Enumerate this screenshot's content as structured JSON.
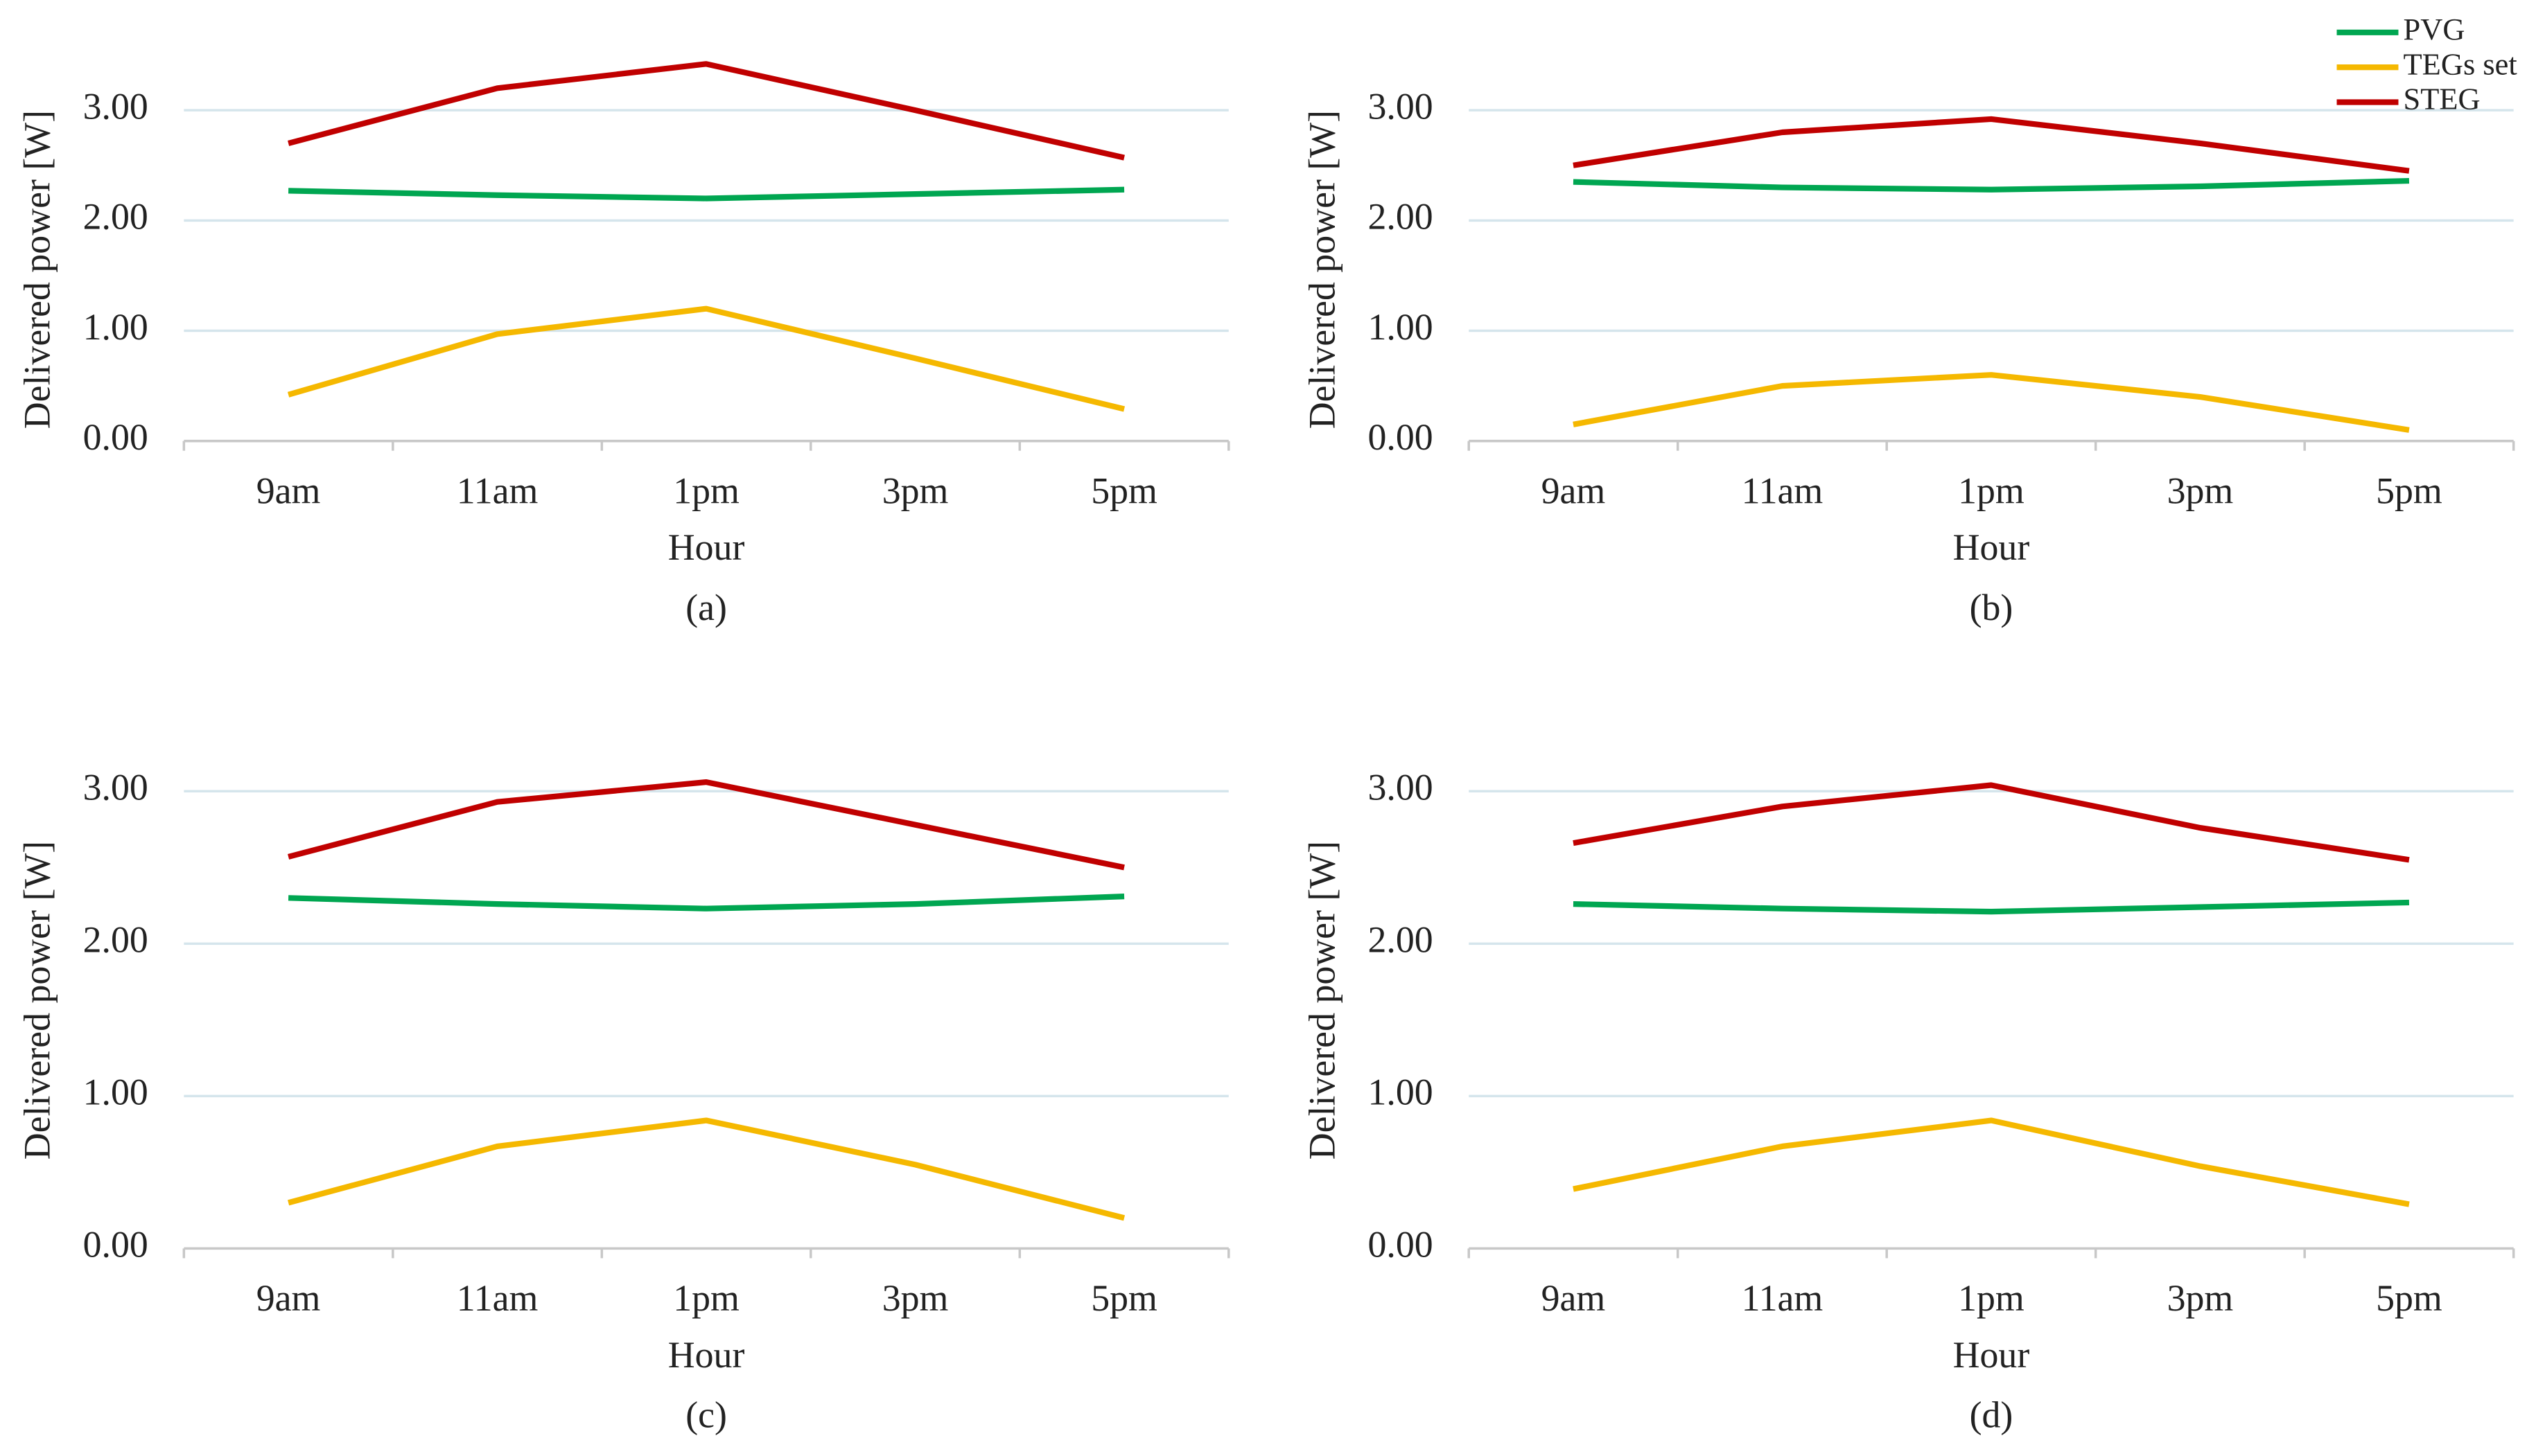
{
  "chart_data": [
    {
      "type": "line",
      "title": "(a)",
      "x_label": "Hour",
      "y_label": "Delivered power [W]",
      "categories": [
        "9am",
        "11am",
        "1pm",
        "3pm",
        "5pm"
      ],
      "series": [
        {
          "color": "#00a651",
          "values": [
            2.27,
            2.23,
            2.2,
            2.24,
            2.28
          ]
        },
        {
          "color": "#f5b800",
          "values": [
            0.42,
            0.97,
            1.2,
            0.75,
            0.29
          ]
        },
        {
          "color": "#c00000",
          "values": [
            2.7,
            3.2,
            3.42,
            3.0,
            2.57
          ]
        }
      ],
      "ylim": [
        0,
        3.5
      ],
      "yticks": [
        {
          "value": 0,
          "label": "0.00"
        },
        {
          "value": 1,
          "label": "1.00"
        },
        {
          "value": 2,
          "label": "2.00"
        },
        {
          "value": 3,
          "label": "3.00"
        }
      ],
      "grid": true
    },
    {
      "type": "line",
      "title": "(b)",
      "x_label": "Hour",
      "y_label": "Delivered power [W]",
      "categories": [
        "9am",
        "11am",
        "1pm",
        "3pm",
        "5pm"
      ],
      "series": [
        {
          "name": "PVG",
          "color": "#00a651",
          "values": [
            2.35,
            2.3,
            2.28,
            2.31,
            2.36
          ]
        },
        {
          "name": "TEGs set",
          "color": "#f5b800",
          "values": [
            0.15,
            0.5,
            0.6,
            0.4,
            0.1
          ]
        },
        {
          "name": "STEG",
          "color": "#c00000",
          "values": [
            2.5,
            2.8,
            2.92,
            2.7,
            2.45
          ]
        }
      ],
      "ylim": [
        0,
        3.5
      ],
      "yticks": [
        {
          "value": 0,
          "label": "0.00"
        },
        {
          "value": 1,
          "label": "1.00"
        },
        {
          "value": 2,
          "label": "2.00"
        },
        {
          "value": 3,
          "label": "3.00"
        }
      ],
      "grid": true,
      "legend": "top-right"
    },
    {
      "type": "line",
      "title": "(c)",
      "x_label": "Hour",
      "y_label": "Delivered power [W]",
      "categories": [
        "9am",
        "11am",
        "1pm",
        "3pm",
        "5pm"
      ],
      "series": [
        {
          "color": "#00a651",
          "values": [
            2.3,
            2.26,
            2.23,
            2.26,
            2.31
          ]
        },
        {
          "color": "#f5b800",
          "values": [
            0.3,
            0.67,
            0.84,
            0.55,
            0.2
          ]
        },
        {
          "color": "#c00000",
          "values": [
            2.57,
            2.93,
            3.06,
            2.78,
            2.5
          ]
        }
      ],
      "ylim": [
        0,
        3.5
      ],
      "yticks": [
        {
          "value": 0,
          "label": "0.00"
        },
        {
          "value": 1,
          "label": "1.00"
        },
        {
          "value": 2,
          "label": "2.00"
        },
        {
          "value": 3,
          "label": "3.00"
        }
      ],
      "grid": true
    },
    {
      "type": "line",
      "title": "(d)",
      "x_label": "Hour",
      "y_label": "Delivered power [W]",
      "categories": [
        "9am",
        "11am",
        "1pm",
        "3pm",
        "5pm"
      ],
      "series": [
        {
          "color": "#00a651",
          "values": [
            2.26,
            2.23,
            2.21,
            2.24,
            2.27
          ]
        },
        {
          "color": "#f5b800",
          "values": [
            0.39,
            0.67,
            0.84,
            0.54,
            0.29
          ]
        },
        {
          "color": "#c00000",
          "values": [
            2.66,
            2.9,
            3.04,
            2.76,
            2.55
          ]
        }
      ],
      "ylim": [
        0,
        3.5
      ],
      "yticks": [
        {
          "value": 0,
          "label": "0.00"
        },
        {
          "value": 1,
          "label": "1.00"
        },
        {
          "value": 2,
          "label": "2.00"
        },
        {
          "value": 3,
          "label": "3.00"
        }
      ],
      "grid": true
    }
  ]
}
